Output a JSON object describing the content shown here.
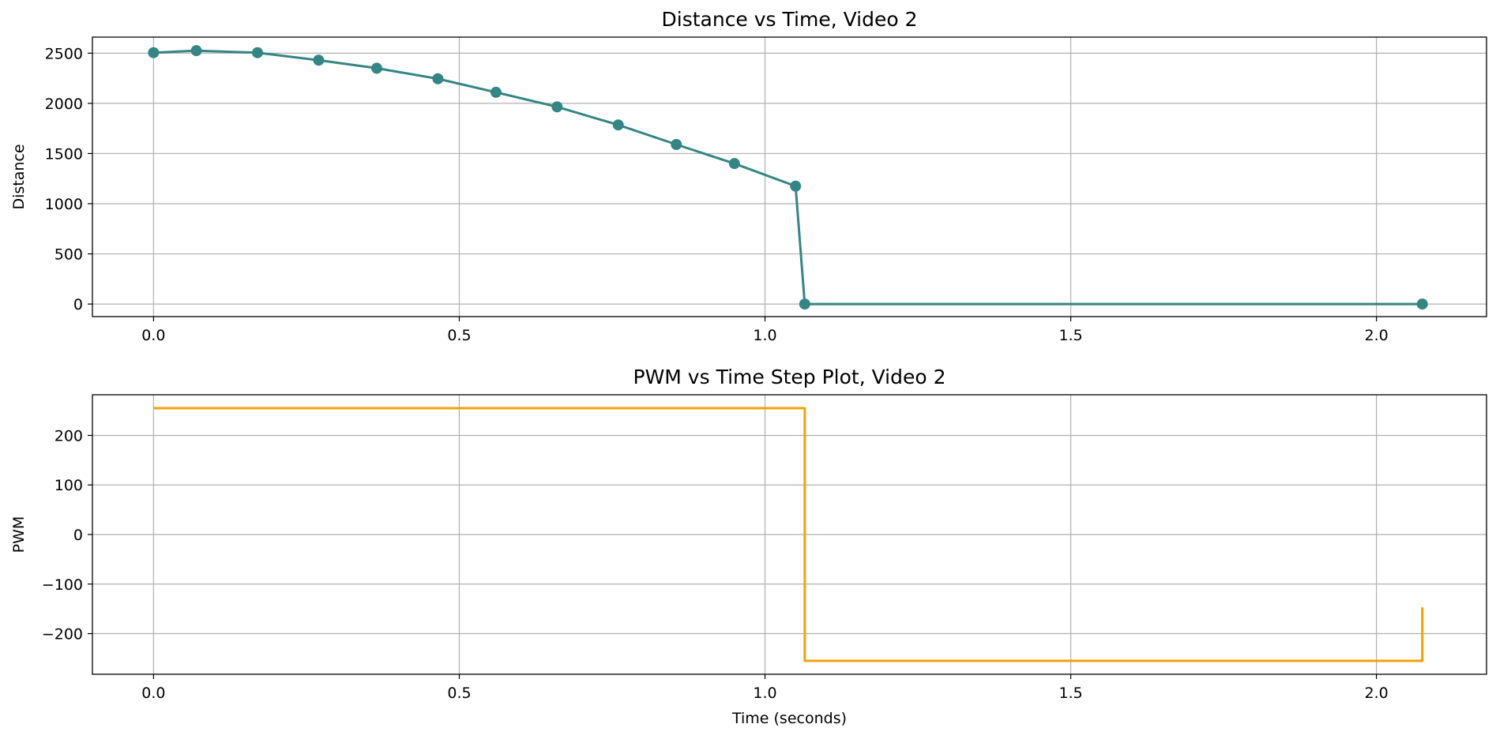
{
  "colors": {
    "distance_line": "#358585",
    "pwm_line": "#f0a30a",
    "grid": "#b0b0b0",
    "axes": "#000000"
  },
  "chart_data": [
    {
      "type": "line",
      "title": "Distance vs Time, Video 2",
      "xlabel": "",
      "ylabel": "Distance",
      "xlim": [
        -0.1,
        2.18
      ],
      "ylim": [
        -125,
        2660
      ],
      "xticks": [
        0.0,
        0.5,
        1.0,
        1.5,
        2.0
      ],
      "xtick_labels": [
        "0.0",
        "0.5",
        "1.0",
        "1.5",
        "2.0"
      ],
      "yticks": [
        0,
        500,
        1000,
        1500,
        2000,
        2500
      ],
      "ytick_labels": [
        "0",
        "500",
        "1000",
        "1500",
        "2000",
        "2500"
      ],
      "grid": true,
      "markers": true,
      "color": "#358585",
      "x": [
        0.0,
        0.07,
        0.17,
        0.27,
        0.365,
        0.465,
        0.56,
        0.66,
        0.76,
        0.855,
        0.95,
        1.05,
        1.065,
        2.075
      ],
      "y": [
        2505,
        2525,
        2505,
        2430,
        2350,
        2245,
        2110,
        1965,
        1785,
        1590,
        1400,
        1175,
        0,
        0
      ]
    },
    {
      "type": "line",
      "step": true,
      "title": "PWM vs Time Step Plot, Video 2",
      "xlabel": "Time (seconds)",
      "ylabel": "PWM",
      "xlim": [
        -0.1,
        2.18
      ],
      "ylim": [
        -282,
        282
      ],
      "xticks": [
        0.0,
        0.5,
        1.0,
        1.5,
        2.0
      ],
      "xtick_labels": [
        "0.0",
        "0.5",
        "1.0",
        "1.5",
        "2.0"
      ],
      "yticks": [
        -200,
        -100,
        0,
        100,
        200
      ],
      "ytick_labels": [
        "−200",
        "−100",
        "0",
        "100",
        "200"
      ],
      "grid": true,
      "markers": false,
      "color": "#f0a30a",
      "x": [
        0.0,
        1.065,
        1.065,
        2.075,
        2.075
      ],
      "y": [
        255,
        255,
        -255,
        -255,
        -147
      ]
    }
  ]
}
